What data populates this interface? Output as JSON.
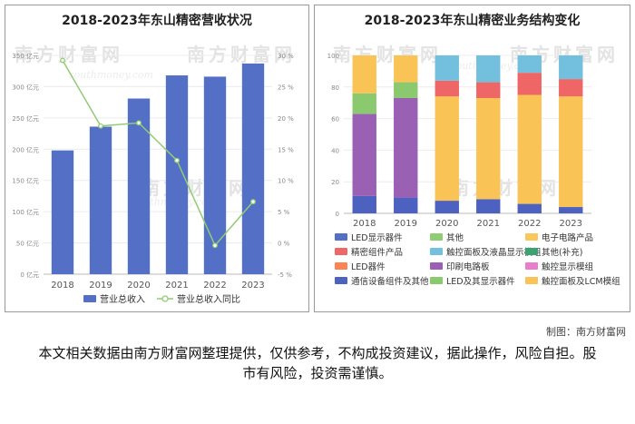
{
  "watermark": {
    "brand": "南方财富网",
    "url": "southmoney.com"
  },
  "credit": "制图：南方财富网",
  "disclaimer": "本文相关数据由南方财富网整理提供，仅供参考，不构成投资建议，据此操作，风险自担。股市有风险，投资需谨慎。",
  "chart_data": [
    {
      "type": "bar+line",
      "title": "2018-2023年东山精密营收状况",
      "categories": [
        "2018",
        "2019",
        "2020",
        "2021",
        "2022",
        "2023"
      ],
      "series": [
        {
          "name": "营业总收入",
          "type": "bar",
          "axis": "left",
          "color": "#5470c6",
          "values": [
            198,
            236,
            281,
            318,
            316,
            337
          ]
        },
        {
          "name": "营业总收入同比",
          "type": "line",
          "axis": "right",
          "color": "#91cc75",
          "values": [
            29.2,
            18.7,
            19.2,
            13.2,
            -0.4,
            6.6
          ]
        }
      ],
      "y_left": {
        "ticks": [
          0,
          50,
          100,
          150,
          200,
          250,
          300,
          350
        ],
        "labels": [
          "0 亿元",
          "50 亿元",
          "100 亿元",
          "150 亿元",
          "200 亿元",
          "250 亿元",
          "300 亿元",
          "350 亿元"
        ],
        "range": [
          0,
          350
        ]
      },
      "y_right": {
        "ticks": [
          -5,
          0,
          5,
          10,
          15,
          20,
          25,
          30
        ],
        "labels": [
          "-5 %",
          "0 %",
          "5 %",
          "10 %",
          "15 %",
          "20 %",
          "25 %",
          "30 %"
        ],
        "range": [
          -5,
          30
        ]
      },
      "legend": [
        {
          "label": "营业总收入",
          "color": "#5470c6",
          "kind": "rect"
        },
        {
          "label": "营业总收入同比",
          "color": "#91cc75",
          "kind": "line"
        }
      ]
    },
    {
      "type": "stacked-bar-100",
      "title": "2018-2023年东山精密业务结构变化",
      "categories": [
        "2018",
        "2019",
        "2020",
        "2021",
        "2022",
        "2023"
      ],
      "y_ticks": [
        "0",
        "20",
        "40",
        "60",
        "80",
        "100"
      ],
      "series": [
        {
          "name": "LED显示器件",
          "color": "#5470c6",
          "values": [
            0,
            0,
            0,
            0,
            0,
            0
          ]
        },
        {
          "name": "其他",
          "color": "#91cc75",
          "values": [
            0,
            0,
            0,
            0,
            0,
            0
          ]
        },
        {
          "name": "电子电路产品",
          "color": "#fac858",
          "values": [
            0,
            0,
            0,
            0,
            0,
            0
          ]
        },
        {
          "name": "精密组件产品",
          "color": "#ee6666",
          "values": [
            0,
            0,
            10,
            10,
            14,
            11
          ]
        },
        {
          "name": "触控面板及液晶显示模组",
          "color": "#73c0de",
          "values": [
            0,
            0,
            16,
            17,
            11,
            15
          ]
        },
        {
          "name": "其他(补充)",
          "color": "#3ba272",
          "values": [
            0,
            0,
            0,
            0,
            0,
            0
          ]
        },
        {
          "name": "LED器件",
          "color": "#fc8452",
          "values": [
            0,
            0,
            0,
            0,
            0,
            0
          ]
        },
        {
          "name": "印刷电路板",
          "color": "#9a60b4",
          "values": [
            52,
            63,
            0,
            0,
            0,
            0
          ]
        },
        {
          "name": "触控显示模组",
          "color": "#ea7ccc",
          "values": [
            0,
            0,
            0,
            0,
            0,
            0
          ]
        },
        {
          "name": "通信设备组件及其他",
          "color": "#4c61c0",
          "values": [
            11,
            10,
            8,
            9,
            6,
            4
          ]
        },
        {
          "name": "LED及其显示器件",
          "color": "#8bc96f",
          "values": [
            13,
            10,
            0,
            0,
            0,
            0
          ]
        },
        {
          "name": "触控面板及LCM模组",
          "color": "#f9c455",
          "values": [
            24,
            17,
            66,
            64,
            69,
            70
          ]
        }
      ],
      "stack_order_bottom_to_top": [
        "通信设备组件及其他",
        "印刷电路板",
        "LED及其显示器件",
        "触控面板及LCM模组",
        "精密组件产品",
        "触控面板及液晶显示模组"
      ]
    }
  ]
}
